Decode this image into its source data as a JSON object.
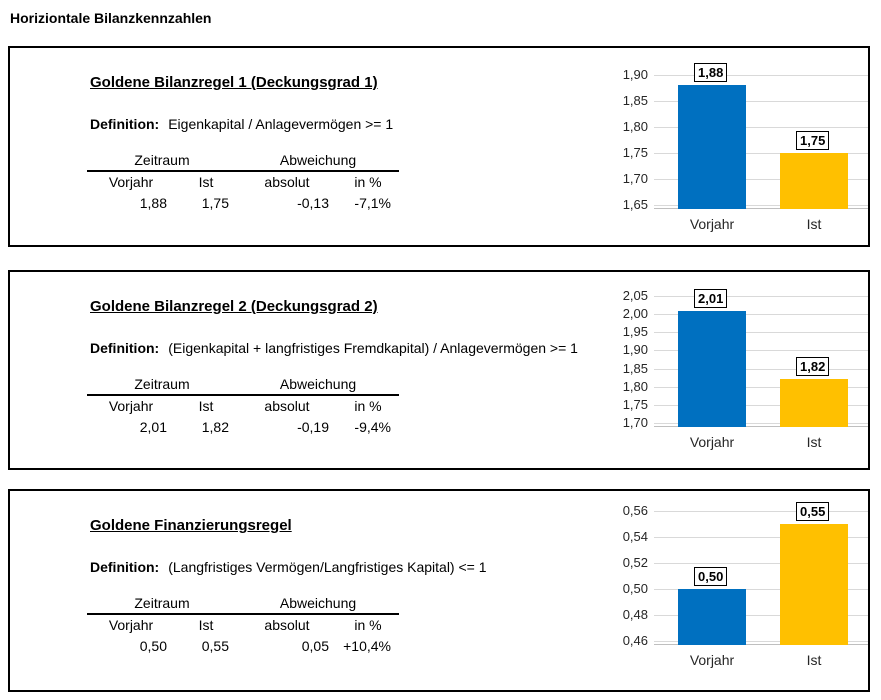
{
  "page_title": "Horiziontale Bilanzkennzahlen",
  "colors": {
    "bar_vorjahr": "#0070C0",
    "bar_ist": "#FFC000",
    "gridline": "#D9D9D9",
    "panel_border": "#000000"
  },
  "panels": [
    {
      "title": "Goldene Bilanzregel 1 (Deckungsgrad 1)",
      "definition_label": "Definition:",
      "definition_text": "Eigenkapital / Anlagevermögen >= 1",
      "table": {
        "group_headers": [
          "Zeitraum",
          "Abweichung"
        ],
        "col_headers": [
          "Vorjahr",
          "Ist",
          "absolut",
          "in %"
        ],
        "values": [
          "1,88",
          "1,75",
          "-0,13",
          "-7,1%"
        ]
      }
    },
    {
      "title": "Goldene Bilanzregel 2 (Deckungsgrad 2)",
      "definition_label": "Definition:",
      "definition_text": "(Eigenkapital + langfristiges Fremdkapital) / Anlagevermögen >= 1",
      "table": {
        "group_headers": [
          "Zeitraum",
          "Abweichung"
        ],
        "col_headers": [
          "Vorjahr",
          "Ist",
          "absolut",
          "in %"
        ],
        "values": [
          "2,01",
          "1,82",
          "-0,19",
          "-9,4%"
        ]
      }
    },
    {
      "title": "Goldene Finanzierungsregel",
      "definition_label": "Definition:",
      "definition_text": "(Langfristiges Vermögen/Langfristiges Kapital) <= 1",
      "table": {
        "group_headers": [
          "Zeitraum",
          "Abweichung"
        ],
        "col_headers": [
          "Vorjahr",
          "Ist",
          "absolut",
          "in %"
        ],
        "values": [
          "0,50",
          "0,55",
          "0,05",
          "+10,4%"
        ]
      }
    }
  ],
  "chart_data": [
    {
      "type": "bar",
      "title": "",
      "categories": [
        "Vorjahr",
        "Ist"
      ],
      "values": [
        1.88,
        1.75
      ],
      "value_labels": [
        "1,88",
        "1,75"
      ],
      "bar_colors": [
        "#0070C0",
        "#FFC000"
      ],
      "ylim": [
        1.65,
        1.9
      ],
      "ytick_labels": [
        "1,90",
        "1,85",
        "1,80",
        "1,75",
        "1,70",
        "1,65"
      ],
      "grid": true,
      "legend": "none"
    },
    {
      "type": "bar",
      "title": "",
      "categories": [
        "Vorjahr",
        "Ist"
      ],
      "values": [
        2.01,
        1.82
      ],
      "value_labels": [
        "2,01",
        "1,82"
      ],
      "bar_colors": [
        "#0070C0",
        "#FFC000"
      ],
      "ylim": [
        1.7,
        2.05
      ],
      "ytick_labels": [
        "2,05",
        "2,00",
        "1,95",
        "1,90",
        "1,85",
        "1,80",
        "1,75",
        "1,70"
      ],
      "grid": true,
      "legend": "none"
    },
    {
      "type": "bar",
      "title": "",
      "categories": [
        "Vorjahr",
        "Ist"
      ],
      "values": [
        0.5,
        0.55
      ],
      "value_labels": [
        "0,50",
        "0,55"
      ],
      "bar_colors": [
        "#0070C0",
        "#FFC000"
      ],
      "ylim": [
        0.46,
        0.56
      ],
      "ytick_labels": [
        "0,56",
        "0,54",
        "0,52",
        "0,50",
        "0,48",
        "0,46"
      ],
      "grid": true,
      "legend": "none"
    }
  ]
}
